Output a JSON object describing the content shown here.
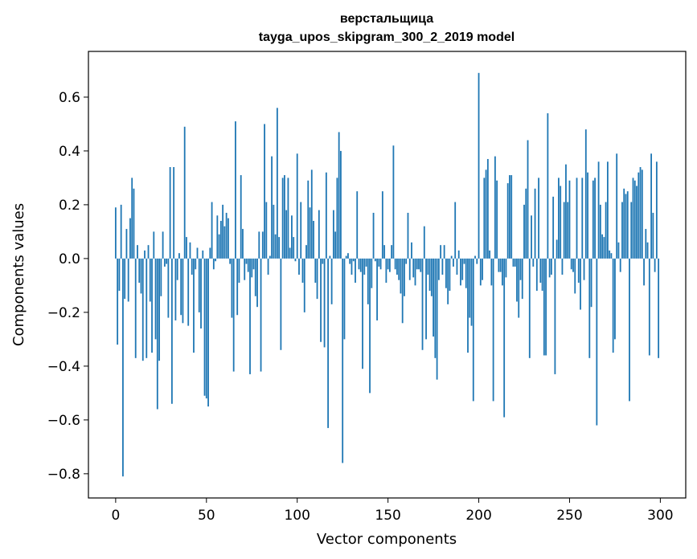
{
  "chart_data": {
    "type": "bar",
    "title_lines": [
      "верстальщица",
      "tayga_upos_skipgram_300_2_2019 model"
    ],
    "xlabel": "Vector components",
    "ylabel": "Components values",
    "xlim": [
      -15,
      314
    ],
    "ylim": [
      -0.89,
      0.77
    ],
    "xticks": [
      0,
      50,
      100,
      150,
      200,
      250,
      300
    ],
    "yticks": [
      -0.8,
      -0.6,
      -0.4,
      -0.2,
      0.0,
      0.2,
      0.4,
      0.6
    ],
    "ytick_labels": [
      "−0.8",
      "−0.6",
      "−0.4",
      "−0.2",
      "0.0",
      "0.2",
      "0.4",
      "0.6"
    ],
    "bar_color": "#1f77b4",
    "series": [
      {
        "name": "components",
        "values": [
          0.19,
          -0.32,
          -0.12,
          0.2,
          -0.81,
          -0.15,
          0.11,
          -0.16,
          0.15,
          0.3,
          0.26,
          -0.37,
          0.05,
          -0.09,
          -0.13,
          -0.38,
          0.03,
          -0.37,
          0.05,
          -0.16,
          -0.35,
          0.1,
          -0.3,
          -0.56,
          -0.38,
          -0.14,
          0.1,
          -0.03,
          -0.02,
          -0.22,
          0.34,
          -0.54,
          0.34,
          -0.23,
          -0.08,
          0.02,
          -0.21,
          -0.24,
          0.49,
          0.08,
          -0.25,
          0.06,
          -0.06,
          -0.35,
          -0.04,
          0.04,
          -0.2,
          -0.26,
          0.03,
          -0.51,
          -0.52,
          -0.55,
          0.04,
          0.21,
          -0.04,
          -0.01,
          0.16,
          0.09,
          0.14,
          0.2,
          0.12,
          0.17,
          0.15,
          -0.02,
          -0.22,
          -0.42,
          0.51,
          -0.21,
          -0.09,
          0.31,
          0.11,
          -0.08,
          -0.02,
          -0.05,
          -0.43,
          -0.07,
          -0.04,
          -0.14,
          -0.18,
          0.1,
          -0.42,
          0.1,
          0.5,
          0.21,
          -0.06,
          0.01,
          0.38,
          0.2,
          0.09,
          0.56,
          0.08,
          -0.34,
          0.3,
          0.31,
          0.18,
          0.3,
          0.04,
          0.16,
          0.08,
          -0.01,
          0.39,
          -0.06,
          0.21,
          -0.09,
          -0.2,
          0.05,
          0.29,
          0.19,
          0.33,
          0.14,
          -0.09,
          -0.15,
          0.18,
          -0.31,
          -0.02,
          -0.33,
          0.32,
          -0.63,
          0.01,
          -0.17,
          0.18,
          0.1,
          0.3,
          0.47,
          0.4,
          -0.76,
          -0.3,
          0.01,
          0.02,
          -0.02,
          -0.06,
          -0.01,
          -0.09,
          0.25,
          -0.04,
          -0.05,
          -0.41,
          -0.06,
          -0.03,
          -0.17,
          -0.5,
          -0.11,
          0.17,
          -0.01,
          -0.23,
          -0.03,
          -0.04,
          0.25,
          0.05,
          -0.09,
          -0.04,
          -0.05,
          0.05,
          0.42,
          -0.04,
          -0.06,
          -0.08,
          -0.13,
          -0.24,
          -0.14,
          -0.02,
          0.17,
          -0.08,
          0.06,
          -0.07,
          -0.1,
          -0.04,
          -0.04,
          -0.05,
          -0.34,
          0.12,
          -0.3,
          -0.06,
          -0.12,
          -0.14,
          -0.29,
          -0.37,
          -0.45,
          -0.08,
          0.05,
          -0.06,
          0.05,
          -0.11,
          -0.17,
          -0.12,
          0.01,
          -0.03,
          0.21,
          -0.06,
          0.03,
          -0.1,
          -0.08,
          -0.02,
          -0.11,
          -0.35,
          -0.22,
          -0.25,
          -0.53,
          0.01,
          -0.02,
          0.69,
          -0.1,
          -0.08,
          0.3,
          0.33,
          0.37,
          0.03,
          -0.1,
          -0.53,
          0.38,
          0.29,
          -0.05,
          -0.05,
          -0.1,
          -0.59,
          -0.07,
          0.28,
          0.31,
          0.31,
          -0.03,
          -0.03,
          -0.16,
          -0.22,
          -0.08,
          -0.15,
          0.2,
          0.26,
          0.44,
          -0.37,
          0.16,
          -0.03,
          0.26,
          -0.12,
          0.3,
          -0.09,
          -0.12,
          -0.36,
          -0.36,
          0.54,
          -0.07,
          -0.06,
          0.23,
          -0.43,
          0.07,
          0.3,
          0.27,
          -0.06,
          0.21,
          0.35,
          0.21,
          0.29,
          -0.04,
          -0.05,
          -0.13,
          0.3,
          -0.09,
          -0.19,
          0.3,
          -0.08,
          0.48,
          0.32,
          -0.37,
          -0.18,
          0.29,
          0.3,
          -0.62,
          0.36,
          0.2,
          0.09,
          0.08,
          0.21,
          0.36,
          0.03,
          0.02,
          -0.35,
          -0.3,
          0.39,
          0.06,
          -0.05,
          0.21,
          0.26,
          0.24,
          0.25,
          -0.53,
          0.21,
          0.3,
          0.29,
          0.27,
          0.32,
          0.34,
          0.33,
          -0.1,
          0.11,
          0.06,
          -0.36,
          0.39,
          0.17,
          -0.05,
          0.36,
          -0.37
        ]
      }
    ]
  }
}
